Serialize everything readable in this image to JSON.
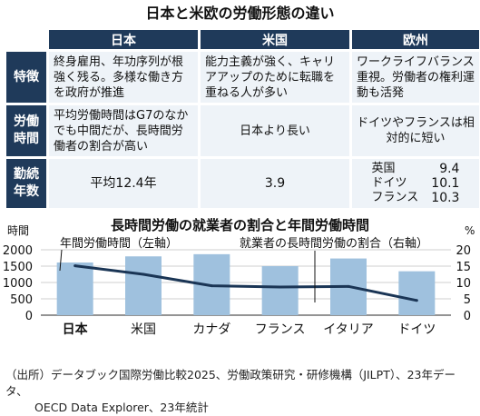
{
  "title": "日本と米欧の労働形態の違い",
  "table": {
    "columns": [
      "日本",
      "米国",
      "欧州"
    ],
    "rows": [
      {
        "label": "特徴",
        "label_lines": [
          "特徴"
        ],
        "japan": "終身雇用、年功序列が根強く残る。多様な働き方を政府が推進",
        "us": "能力主義が強く、キャリアアップのために転職を重ねる人が多い",
        "eu": "ワークライフバランス重視。労働者の権利運動も活発"
      },
      {
        "label": "労働時間",
        "label_lines": [
          "労働",
          "時間"
        ],
        "japan": "平均労働時間はG7のなかでも中間だが、長時間労働者の割合が高い",
        "us": "日本より長い",
        "eu": "ドイツやフランスは相対的に短い"
      },
      {
        "label": "勤続年数",
        "label_lines": [
          "勤続",
          "年数"
        ],
        "japan": "平均12.4年",
        "us": "3.9",
        "eu_stats": [
          {
            "country": "英国",
            "value": "9.4"
          },
          {
            "country": "ドイツ",
            "value": "10.1"
          },
          {
            "country": "フランス",
            "value": "10.3"
          }
        ]
      }
    ]
  },
  "chart": {
    "title": "長時間労働の就業者の割合と年間労働時間",
    "left_unit": "時間",
    "right_unit": "%",
    "bar_label": "年間労働時間（左軸）",
    "line_label": "就業者の長時間労働の割合（右軸）"
  },
  "chart_data": {
    "type": "bar",
    "title": "長時間労働の就業者の割合と年間労働時間",
    "categories": [
      "日本",
      "米国",
      "カナダ",
      "フランス",
      "イタリア",
      "ドイツ"
    ],
    "series": [
      {
        "name": "年間労働時間（左軸）",
        "type": "bar",
        "axis": "left",
        "values": [
          1611,
          1799,
          1865,
          1500,
          1734,
          1343
        ]
      },
      {
        "name": "就業者の長時間労働の割合（右軸）",
        "type": "line",
        "axis": "right",
        "values": [
          15.1,
          12.5,
          9.0,
          8.6,
          8.8,
          4.5
        ]
      }
    ],
    "left_axis": {
      "label": "時間",
      "range": [
        0,
        2000
      ],
      "ticks": [
        0,
        500,
        1000,
        1500,
        2000
      ]
    },
    "right_axis": {
      "label": "%",
      "range": [
        0,
        20
      ],
      "ticks": [
        0,
        5,
        10,
        15,
        20
      ]
    },
    "colors": {
      "bar": "#9fc1de",
      "line": "#1a3555",
      "grid": "#bfbfbf"
    }
  },
  "source": {
    "line1": "（出所）データブック国際労働比較2025、労働政策研究・研修機構（JILPT）、23年データ、",
    "line2": "OECD Data Explorer、23年統計"
  }
}
